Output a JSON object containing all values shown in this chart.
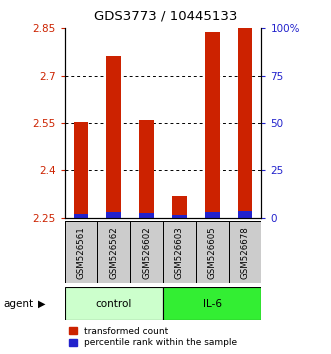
{
  "title": "GDS3773 / 10445133",
  "samples": [
    "GSM526561",
    "GSM526562",
    "GSM526602",
    "GSM526603",
    "GSM526605",
    "GSM526678"
  ],
  "red_values": [
    2.553,
    2.762,
    2.558,
    2.318,
    2.838,
    2.852
  ],
  "blue_values": [
    2.263,
    2.268,
    2.265,
    2.258,
    2.268,
    2.27
  ],
  "bar_bottom": 2.25,
  "ylim_left": [
    2.25,
    2.85
  ],
  "ylim_right": [
    0,
    100
  ],
  "yticks_left": [
    2.25,
    2.4,
    2.55,
    2.7,
    2.85
  ],
  "yticks_right": [
    0,
    25,
    50,
    75,
    100
  ],
  "ytick_labels_left": [
    "2.25",
    "2.4",
    "2.55",
    "2.7",
    "2.85"
  ],
  "ytick_labels_right": [
    "0",
    "25",
    "50",
    "75",
    "100%"
  ],
  "grid_lines": [
    2.4,
    2.55,
    2.7
  ],
  "red_color": "#cc2200",
  "blue_color": "#2222cc",
  "control_color": "#ccffcc",
  "il6_color": "#33ee33",
  "sample_bg_color": "#cccccc",
  "left_tick_color": "#cc2200",
  "right_tick_color": "#2222cc",
  "bar_width": 0.45,
  "figsize": [
    3.31,
    3.54
  ],
  "dpi": 100
}
